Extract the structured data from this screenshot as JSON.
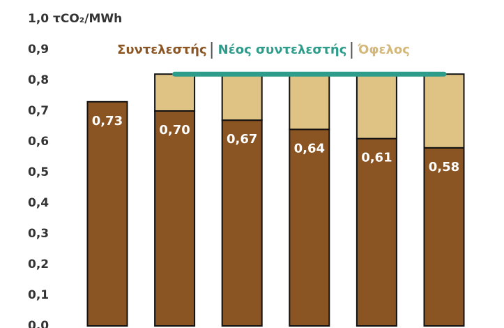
{
  "chart_data": {
    "type": "bar",
    "stacked": true,
    "categories": [
      null,
      null,
      null,
      null,
      null,
      null
    ],
    "series": [
      {
        "name": "Συντελεστής",
        "color": "#8B5523",
        "legend_color": "#8B5523",
        "values": [
          0.73,
          0.7,
          0.67,
          0.64,
          0.61,
          0.58
        ],
        "value_labels": [
          "0,73",
          "0,70",
          "0,67",
          "0,64",
          "0,61",
          "0,58"
        ]
      },
      {
        "name": "Νέος συντελεστής",
        "type": "line",
        "color": "#2E9C8A",
        "legend_color": "#2E9C8A",
        "values": [
          null,
          0.82,
          0.82,
          0.82,
          0.82,
          0.82
        ]
      },
      {
        "name": "Όφελος",
        "color": "#DFC384",
        "legend_color": "#D4B879",
        "values": [
          null,
          0.12,
          0.15,
          0.18,
          0.21,
          0.24
        ]
      }
    ],
    "ylim": [
      0,
      1
    ],
    "yticks": [
      {
        "value": 0,
        "label": "0,0"
      },
      {
        "value": 0.1,
        "label": "0,1"
      },
      {
        "value": 0.2,
        "label": "0,2"
      },
      {
        "value": 0.3,
        "label": "0,3"
      },
      {
        "value": 0.4,
        "label": "0,4"
      },
      {
        "value": 0.5,
        "label": "0,5"
      },
      {
        "value": 0.6,
        "label": "0,6"
      },
      {
        "value": 0.7,
        "label": "0,7"
      },
      {
        "value": 0.8,
        "label": "0,8"
      },
      {
        "value": 0.9,
        "label": "0,9"
      },
      {
        "value": 1,
        "label": "1,0 τCO₂/MWh"
      }
    ],
    "grid": false
  }
}
